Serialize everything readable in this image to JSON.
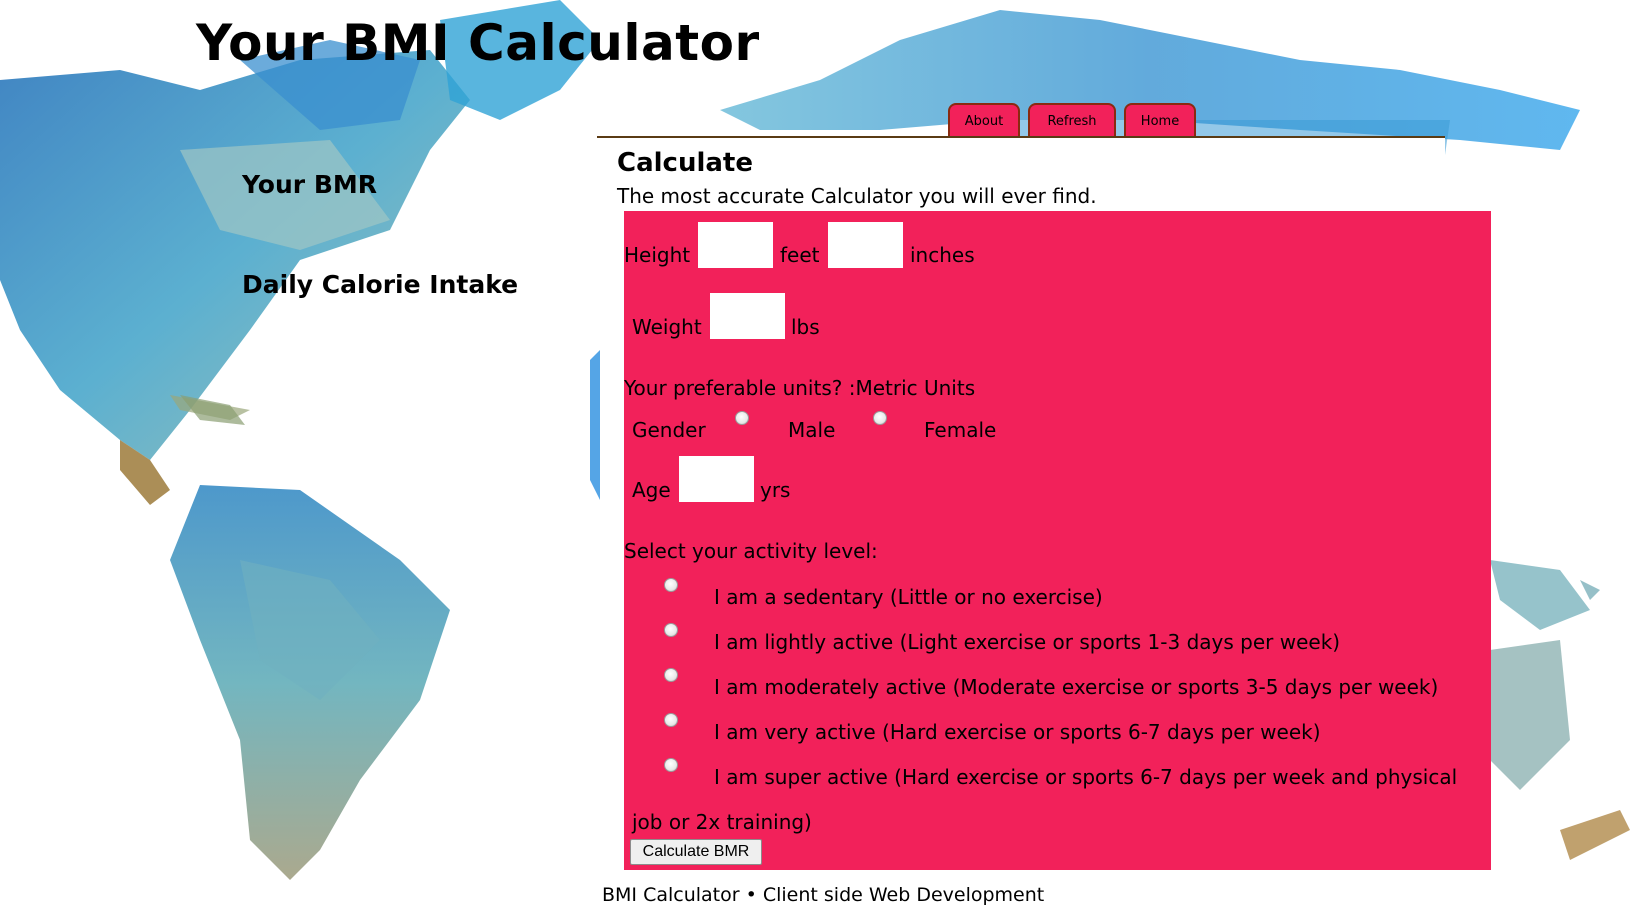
{
  "header": {
    "title": "Your BMI Calculator"
  },
  "sidebar": {
    "bmr_label": "Your BMR",
    "calorie_label": "Daily Calorie Intake"
  },
  "nav": {
    "about": "About",
    "refresh": "Refresh",
    "home": "Home"
  },
  "panel": {
    "title": "Calculate",
    "subtitle": "The most accurate Calculator you will ever find."
  },
  "form": {
    "height_label": "Height",
    "feet_label": "feet",
    "inches_label": "inches",
    "weight_label": "Weight",
    "lbs_label": "lbs",
    "units_label": "Your preferable units? :Metric Units",
    "gender_label": "Gender",
    "male_label": "Male",
    "female_label": "Female",
    "age_label": "Age",
    "yrs_label": "yrs",
    "activity_label": "Select your activity level:",
    "activities": [
      "I am a sedentary (Little or no exercise)",
      "I am lightly active (Light exercise or sports 1-3 days per week)",
      "I am moderately active (Moderate exercise or sports 3-5 days per week)",
      "I am very active (Hard exercise or sports 6-7 days per week)",
      "I am super active (Hard exercise or sports 6-7 days per week and physical",
      "job or 2x training)"
    ],
    "submit_label": "Calculate BMR"
  },
  "footer": {
    "text": "BMI Calculator • Client side Web Development"
  }
}
